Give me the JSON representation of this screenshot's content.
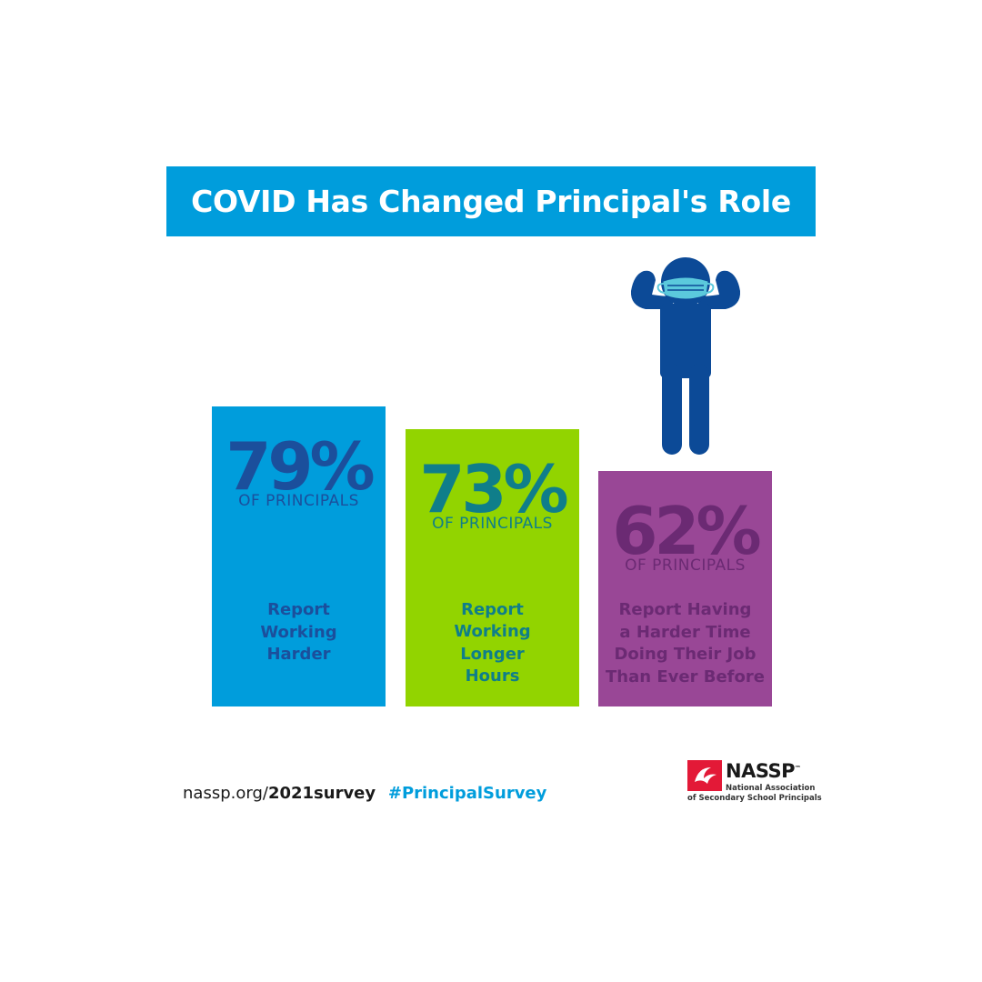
{
  "title": "COVID Has Changed Principal's Role",
  "colors": {
    "banner": "#009ddc",
    "bar_1": "#009ddc",
    "bar_1_text": "#1b4f9c",
    "bar_2": "#92d400",
    "bar_2_text": "#0f7e8a",
    "bar_3": "#994796",
    "bar_3_text": "#6b2a73",
    "figure": "#0c4a97",
    "mask": "#5bc9dc",
    "logo_red": "#e31937"
  },
  "chart_data": {
    "type": "bar",
    "categories": [
      "Report Working Harder",
      "Report Working Longer Hours",
      "Report Having a Harder Time Doing Their Job Than Ever Before"
    ],
    "values": [
      79,
      73,
      62
    ],
    "unit_label": "OF PRINCIPALS",
    "title": "COVID Has Changed Principal's Role",
    "ylim": [
      0,
      100
    ],
    "grid": false
  },
  "bars": [
    {
      "value_label": "79%",
      "unit": "OF PRINCIPALS",
      "description": "Report\nWorking\nHarder"
    },
    {
      "value_label": "73%",
      "unit": "OF PRINCIPALS",
      "description": "Report\nWorking\nLonger\nHours"
    },
    {
      "value_label": "62%",
      "unit": "OF PRINCIPALS",
      "description": "Report Having\na Harder Time\nDoing Their Job\nThan Ever Before"
    }
  ],
  "footer": {
    "url_prefix": "nassp.org/",
    "url_bold": "2021survey",
    "hashtag": "#PrincipalSurvey",
    "hashtag_color": "#009ddc"
  },
  "logo": {
    "name": "NASSP",
    "trademark": "™",
    "subtitle_line1": "National Association",
    "subtitle_line2": "of Secondary School Principals",
    "icon": "nassp-logo-icon"
  },
  "figure_icon": "masked-person-icon"
}
